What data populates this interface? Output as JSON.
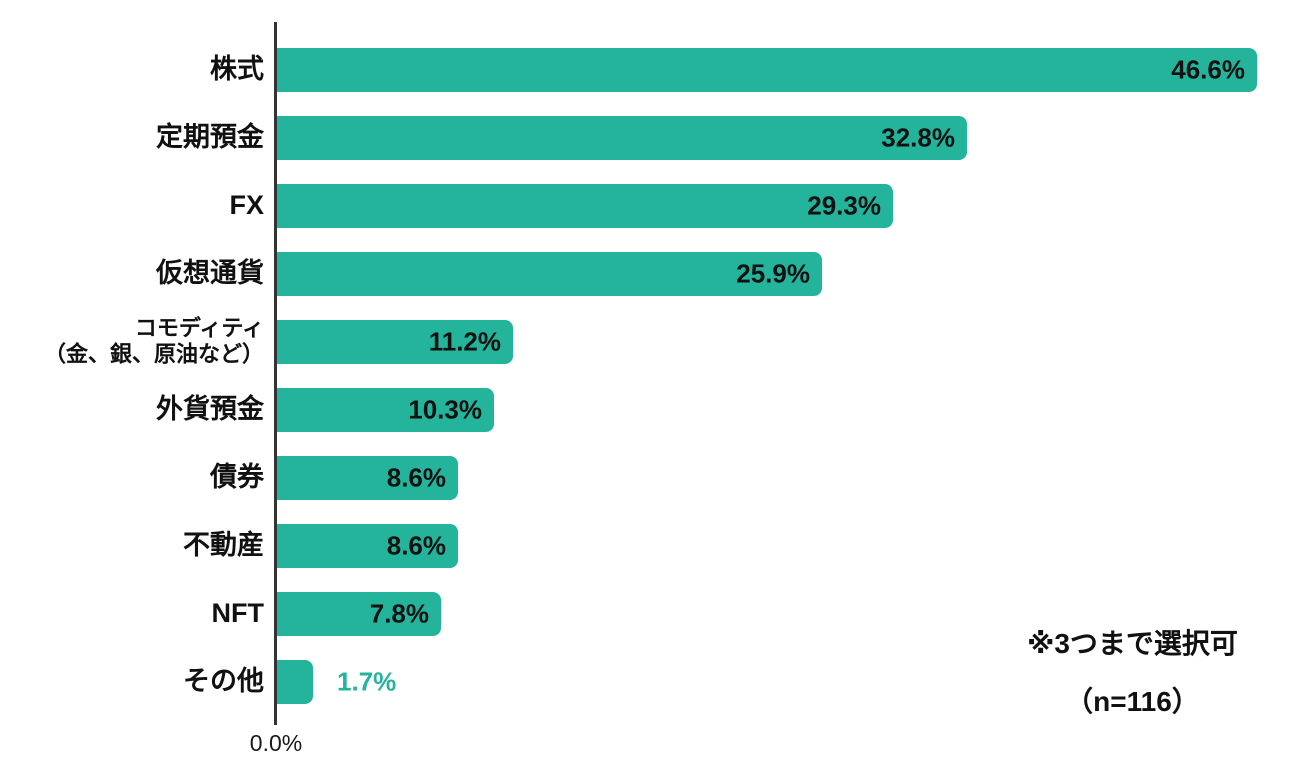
{
  "chart_data": {
    "type": "bar",
    "orientation": "horizontal",
    "title": "",
    "xlabel": "",
    "ylabel": "",
    "categories": [
      "株式",
      "定期預金",
      "FX",
      "仮想通貨",
      "コモディティ（金、銀、原油など）",
      "外貨預金",
      "債券",
      "不動産",
      "NFT",
      "その他"
    ],
    "values": [
      46.6,
      32.8,
      29.3,
      25.9,
      11.2,
      10.3,
      8.6,
      8.6,
      7.8,
      1.7
    ],
    "bars": [
      {
        "label_lines": [
          "株式"
        ],
        "value": 46.6,
        "display": "46.6%",
        "label_inside": true
      },
      {
        "label_lines": [
          "定期預金"
        ],
        "value": 32.8,
        "display": "32.8%",
        "label_inside": true
      },
      {
        "label_lines": [
          "FX"
        ],
        "value": 29.3,
        "display": "29.3%",
        "label_inside": true
      },
      {
        "label_lines": [
          "仮想通貨"
        ],
        "value": 25.9,
        "display": "25.9%",
        "label_inside": true
      },
      {
        "label_lines": [
          "コモディティ",
          "（金、銀、原油など）"
        ],
        "value": 11.2,
        "display": "11.2%",
        "label_inside": true
      },
      {
        "label_lines": [
          "外貨預金"
        ],
        "value": 10.3,
        "display": "10.3%",
        "label_inside": true
      },
      {
        "label_lines": [
          "債券"
        ],
        "value": 8.6,
        "display": "8.6%",
        "label_inside": true
      },
      {
        "label_lines": [
          "不動産"
        ],
        "value": 8.6,
        "display": "8.6%",
        "label_inside": true
      },
      {
        "label_lines": [
          "NFT"
        ],
        "value": 7.8,
        "display": "7.8%",
        "label_inside": true
      },
      {
        "label_lines": [
          "その他"
        ],
        "value": 1.7,
        "display": "1.7%",
        "label_inside": false
      }
    ],
    "x_axis": {
      "tick_labels": [
        "0.0%"
      ],
      "range": [
        0,
        48.8
      ]
    },
    "grid": false,
    "legend": "none",
    "annotations": {
      "note": "※3つまで選択可",
      "sample_size": "（n=116）"
    },
    "colors": {
      "bar": "#23b49b",
      "value_inside_text": "#111111",
      "value_outside_text": "#23b49b",
      "axis": "#333333",
      "background": "#ffffff"
    }
  }
}
